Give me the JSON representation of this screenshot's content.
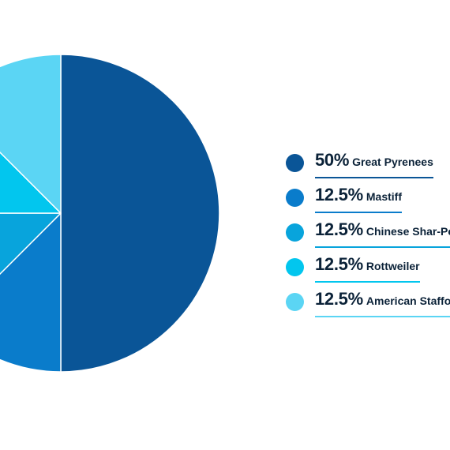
{
  "chart_data": {
    "type": "pie",
    "title": "",
    "slices": [
      {
        "label": "Great Pyrenees",
        "percent_label": "50%",
        "value": 50,
        "color": "#0a5597"
      },
      {
        "label": "Mastiff",
        "percent_label": "12.5%",
        "value": 12.5,
        "color": "#0a7ccb"
      },
      {
        "label": "Chinese Shar-Pei",
        "percent_label": "12.5%",
        "value": 12.5,
        "color": "#08a4dc"
      },
      {
        "label": "Rottweiler",
        "percent_label": "12.5%",
        "value": 12.5,
        "color": "#02c6ee"
      },
      {
        "label": "American Staffordshire Terrier",
        "percent_label": "12.5%",
        "value": 12.5,
        "color": "#5bd5f4"
      }
    ],
    "legend_position": "right"
  },
  "legend": {
    "items": [
      {
        "pct": "50%",
        "name": "Great Pyrenees",
        "color": "#0a5597"
      },
      {
        "pct": "12.5%",
        "name": "Mastiff",
        "color": "#0a7ccb"
      },
      {
        "pct": "12.5%",
        "name": "Chinese Shar-Pei",
        "color": "#08a4dc"
      },
      {
        "pct": "12.5%",
        "name": "Rottweiler",
        "color": "#02c6ee"
      },
      {
        "pct": "12.5%",
        "name": "American Staffordshire Terrier",
        "color": "#5bd5f4"
      }
    ]
  }
}
